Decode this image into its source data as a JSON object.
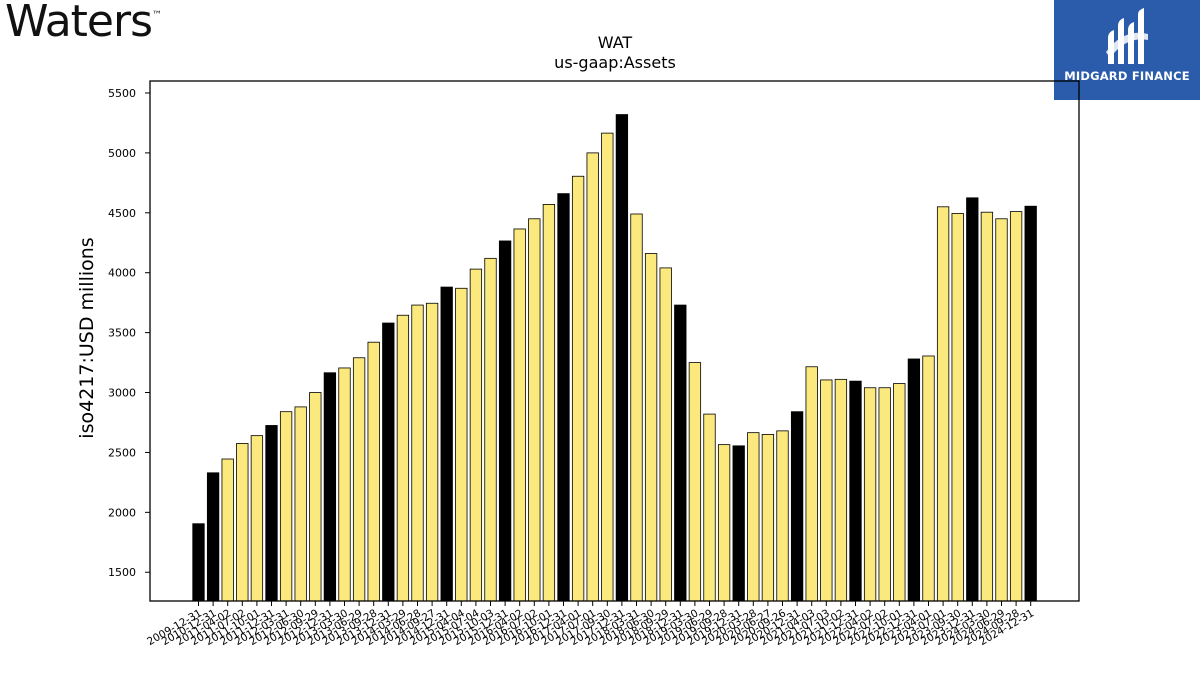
{
  "branding": {
    "company_logo_text": "Waters",
    "company_logo_mark": "™",
    "publisher_name": "MIDGARD FINANCE",
    "publisher_logo_color": "#2a5cab"
  },
  "colors": {
    "annual_bar": "#000000",
    "quarter_bar": "#fbe97e",
    "bar_edge": "#000000"
  },
  "chart_data": {
    "type": "bar",
    "title": "WAT",
    "subtitle": "us-gaap:Assets",
    "xlabel": "",
    "ylabel": "iso4217:USD  millions",
    "ylim": [
      1260,
      5600
    ],
    "yticks": [
      1500,
      2000,
      2500,
      3000,
      3500,
      4000,
      4500,
      5000,
      5500
    ],
    "grid": false,
    "categories": [
      "2009-12-31",
      "2010-12-31",
      "2011-04-02",
      "2011-07-02",
      "2011-10-01",
      "2011-12-31",
      "2012-03-31",
      "2012-06-30",
      "2012-09-29",
      "2012-12-31",
      "2013-03-30",
      "2013-06-29",
      "2013-09-28",
      "2013-12-31",
      "2014-03-29",
      "2014-06-28",
      "2014-09-27",
      "2014-12-31",
      "2015-04-04",
      "2015-07-04",
      "2015-10-03",
      "2015-12-31",
      "2016-04-02",
      "2016-07-02",
      "2016-10-01",
      "2016-12-31",
      "2017-04-01",
      "2017-07-01",
      "2017-09-30",
      "2017-12-31",
      "2018-03-31",
      "2018-06-30",
      "2018-09-29",
      "2018-12-31",
      "2019-03-30",
      "2019-06-29",
      "2019-09-28",
      "2019-12-31",
      "2020-03-28",
      "2020-06-27",
      "2020-09-26",
      "2020-12-31",
      "2021-04-03",
      "2021-07-03",
      "2021-10-02",
      "2021-12-31",
      "2022-04-02",
      "2022-07-02",
      "2022-10-01",
      "2022-12-31",
      "2023-04-01",
      "2023-07-01",
      "2023-09-30",
      "2023-12-31",
      "2024-03-30",
      "2024-06-29",
      "2024-09-28",
      "2024-12-31"
    ],
    "values": [
      1905,
      2330,
      2445,
      2575,
      2640,
      2725,
      2840,
      2880,
      3000,
      3165,
      3205,
      3290,
      3420,
      3580,
      3645,
      3730,
      3745,
      3880,
      3870,
      4030,
      4120,
      4265,
      4365,
      4450,
      4570,
      4660,
      4805,
      5000,
      5165,
      5320,
      4490,
      4160,
      4040,
      3730,
      3250,
      2820,
      2565,
      2555,
      2665,
      2650,
      2680,
      2840,
      3215,
      3105,
      3110,
      3095,
      3040,
      3040,
      3075,
      3280,
      3305,
      4550,
      4495,
      4625,
      4505,
      4450,
      4510,
      4555
    ],
    "annual": [
      true,
      true,
      false,
      false,
      false,
      true,
      false,
      false,
      false,
      true,
      false,
      false,
      false,
      true,
      false,
      false,
      false,
      true,
      false,
      false,
      false,
      true,
      false,
      false,
      false,
      true,
      false,
      false,
      false,
      true,
      false,
      false,
      false,
      true,
      false,
      false,
      false,
      true,
      false,
      false,
      false,
      true,
      false,
      false,
      false,
      true,
      false,
      false,
      false,
      true,
      false,
      false,
      false,
      true,
      false,
      false,
      false,
      true
    ]
  }
}
